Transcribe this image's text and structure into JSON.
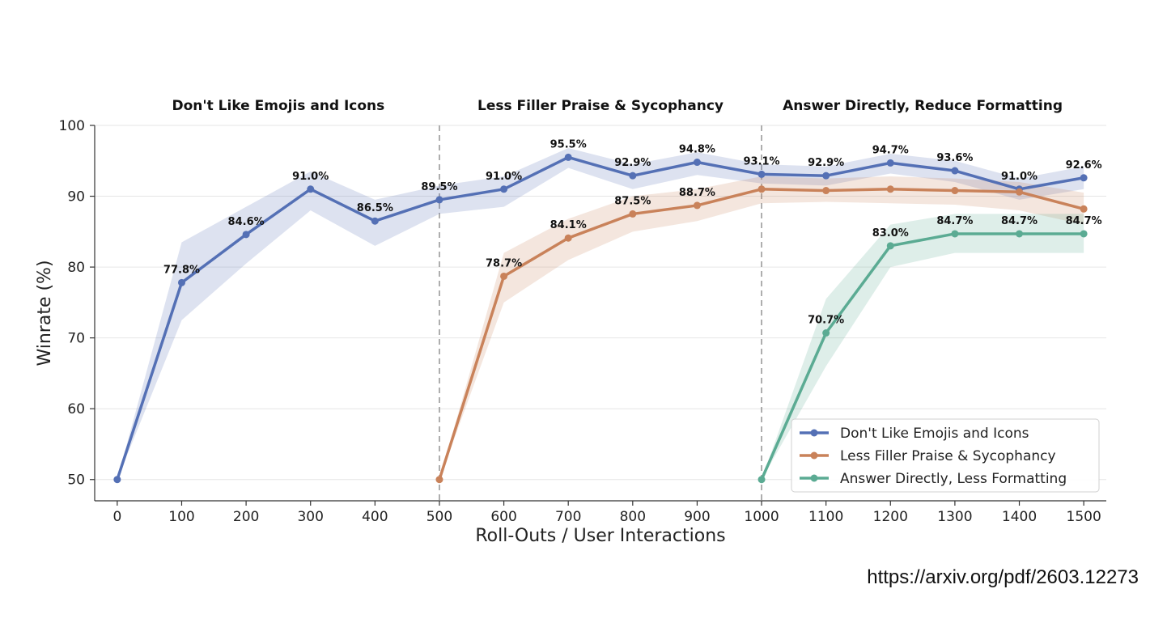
{
  "chart_data": {
    "type": "line",
    "xlabel": "Roll-Outs / User Interactions",
    "ylabel": "Winrate (%)",
    "xlim": [
      -35,
      1535
    ],
    "ylim": [
      47,
      100
    ],
    "xticks": [
      0,
      100,
      200,
      300,
      400,
      500,
      600,
      700,
      800,
      900,
      1000,
      1100,
      1200,
      1300,
      1400,
      1500
    ],
    "yticks": [
      50,
      60,
      70,
      80,
      90,
      100
    ],
    "grid": "horizontal",
    "legend_position": "lower-right",
    "section_dividers": [
      500,
      1000
    ],
    "section_titles": [
      {
        "x_center": 250,
        "text": "Don't Like Emojis and Icons"
      },
      {
        "x_center": 750,
        "text": "Less Filler Praise & Sycophancy"
      },
      {
        "x_center": 1250,
        "text": "Answer Directly, Reduce Formatting"
      }
    ],
    "series": [
      {
        "name": "Don't Like Emojis and Icons",
        "color": "#5470b5",
        "x": [
          0,
          100,
          200,
          300,
          400,
          500,
          600,
          700,
          800,
          900,
          1000,
          1100,
          1200,
          1300,
          1400,
          1500
        ],
        "y": [
          50,
          77.8,
          84.6,
          91.0,
          86.5,
          89.5,
          91.0,
          95.5,
          92.9,
          94.8,
          93.1,
          92.9,
          94.7,
          93.6,
          91.0,
          92.6
        ],
        "lower": [
          50,
          72.5,
          80.5,
          88.0,
          83.0,
          87.5,
          88.5,
          94.0,
          91.0,
          93.0,
          91.8,
          91.5,
          93.2,
          92.0,
          89.5,
          91.0
        ],
        "upper": [
          50,
          83.5,
          88.5,
          93.5,
          89.5,
          91.5,
          92.8,
          96.8,
          94.5,
          96.2,
          94.5,
          94.2,
          96.0,
          95.0,
          92.5,
          94.2
        ],
        "labels": [
          "",
          "77.8%",
          "84.6%",
          "91.0%",
          "86.5%",
          "89.5%",
          "91.0%",
          "95.5%",
          "92.9%",
          "94.8%",
          "93.1%",
          "92.9%",
          "94.7%",
          "93.6%",
          "91.0%",
          "92.6%"
        ]
      },
      {
        "name": "Less Filler Praise & Sycophancy",
        "color": "#c9825a",
        "x": [
          500,
          600,
          700,
          800,
          900,
          1000,
          1100,
          1200,
          1300,
          1400,
          1500
        ],
        "y": [
          50,
          78.7,
          84.1,
          87.5,
          88.7,
          91.0,
          90.8,
          91.0,
          90.8,
          90.6,
          88.2
        ],
        "lower": [
          50,
          75.0,
          81.0,
          85.0,
          86.5,
          89.0,
          89.2,
          89.0,
          88.8,
          88.0,
          86.0
        ],
        "upper": [
          50,
          82.0,
          86.8,
          90.0,
          91.0,
          92.8,
          92.5,
          92.8,
          92.5,
          92.0,
          90.5
        ],
        "labels": [
          "",
          "78.7%",
          "84.1%",
          "87.5%",
          "88.7%",
          "",
          "",
          "",
          "",
          "",
          ""
        ]
      },
      {
        "name": "Answer Directly, Less Formatting",
        "color": "#5bab93",
        "x": [
          1000,
          1100,
          1200,
          1300,
          1400,
          1500
        ],
        "y": [
          50,
          70.7,
          83.0,
          84.7,
          84.7,
          84.7
        ],
        "lower": [
          50,
          66.0,
          80.0,
          82.0,
          82.0,
          82.0
        ],
        "upper": [
          50,
          75.5,
          86.0,
          87.5,
          87.5,
          87.5
        ],
        "labels": [
          "",
          "70.7%",
          "83.0%",
          "84.7%",
          "84.7%",
          "84.7%"
        ]
      }
    ]
  },
  "source_url": "https://arxiv.org/pdf/2603.12273"
}
